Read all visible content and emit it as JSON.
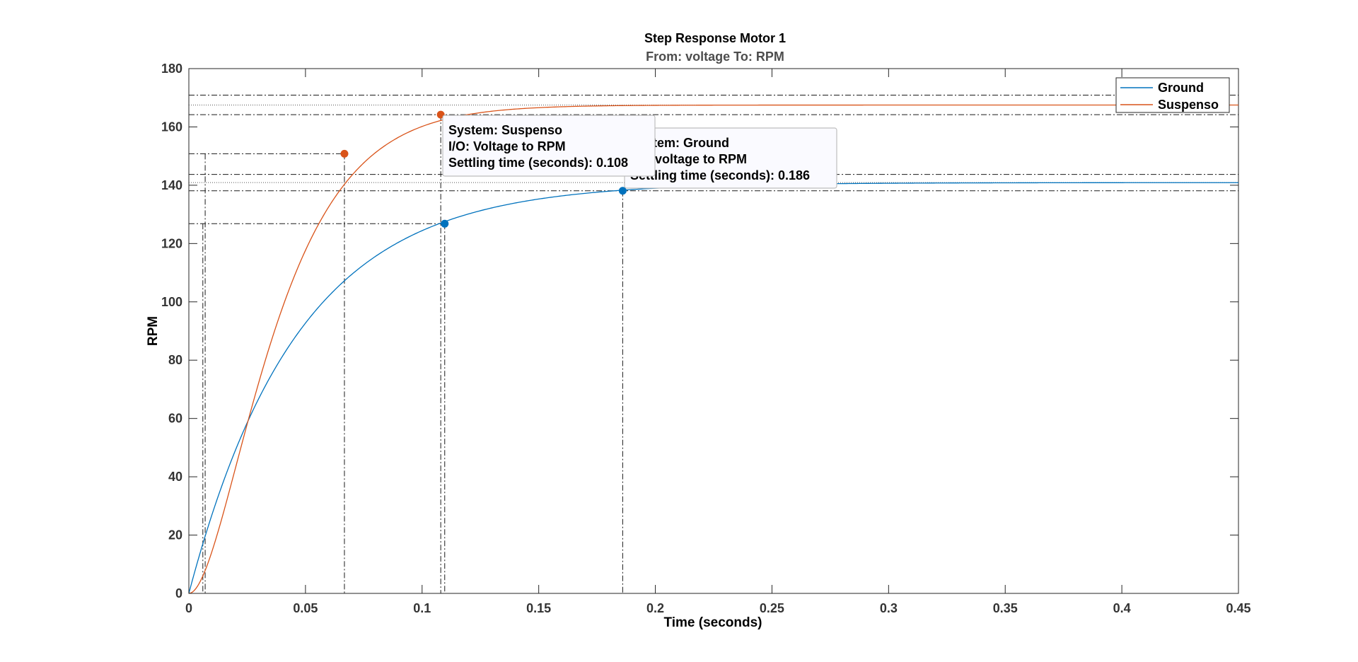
{
  "chart_data": {
    "type": "line",
    "title": "Step Response Motor 1",
    "subtitle": "From: voltage  To: RPM",
    "xlabel": "Time (seconds)",
    "ylabel": "RPM",
    "xlim": [
      0,
      0.45
    ],
    "ylim": [
      0,
      180
    ],
    "xticks": [
      0,
      0.05,
      0.1,
      0.15,
      0.2,
      0.25,
      0.3,
      0.35,
      0.4,
      0.45
    ],
    "xtick_labels": [
      "0",
      "0.05",
      "0.1",
      "0.15",
      "0.2",
      "0.25",
      "0.3",
      "0.35",
      "0.4",
      "0.45"
    ],
    "yticks": [
      0,
      20,
      40,
      60,
      80,
      100,
      120,
      140,
      160,
      180
    ],
    "ytick_labels": [
      "0",
      "20",
      "40",
      "60",
      "80",
      "100",
      "120",
      "140",
      "160",
      "180"
    ],
    "grid": false,
    "legend_position": "top-right",
    "series": [
      {
        "name": "Ground",
        "color": "#0072BD",
        "final_value": 140.9,
        "model": "first_order",
        "tau": 0.0466,
        "markers": [
          {
            "x": 0.1097,
            "y": 126.8,
            "kind": "rise"
          },
          {
            "x": 0.186,
            "y": 138.1,
            "kind": "settling"
          }
        ],
        "settling_band": [
          138.1,
          143.7
        ],
        "rise_start_x": 0.006,
        "x": [
          0,
          0.01,
          0.02,
          0.03,
          0.04,
          0.05,
          0.06,
          0.07,
          0.08,
          0.09,
          0.1,
          0.11,
          0.12,
          0.14,
          0.16,
          0.186,
          0.2,
          0.25,
          0.3,
          0.35,
          0.4,
          0.45
        ],
        "y": [
          0,
          27.3,
          49.4,
          67.2,
          81.5,
          93.1,
          102.4,
          110.0,
          116.1,
          121.0,
          125.0,
          128.2,
          130.8,
          134.6,
          136.9,
          138.1,
          139.2,
          140.5,
          140.8,
          140.9,
          140.9,
          140.9
        ]
      },
      {
        "name": "Suspenso",
        "color": "#D95319",
        "final_value": 167.5,
        "model": "second_order",
        "tau": 0.0204,
        "markers": [
          {
            "x": 0.0667,
            "y": 150.8,
            "kind": "rise"
          },
          {
            "x": 0.108,
            "y": 164.2,
            "kind": "settling"
          }
        ],
        "settling_band": [
          164.2,
          170.9
        ],
        "rise_start_x": 0.007,
        "x": [
          0,
          0.01,
          0.02,
          0.03,
          0.04,
          0.05,
          0.0667,
          0.08,
          0.09,
          0.108,
          0.12,
          0.15,
          0.2,
          0.25,
          0.3,
          0.35,
          0.4,
          0.45
        ],
        "y": [
          0,
          14.5,
          44.9,
          78.4,
          104.6,
          125.2,
          150.8,
          159.0,
          162.5,
          164.2,
          166.0,
          167.2,
          167.5,
          167.5,
          167.5,
          167.5,
          167.5,
          167.5
        ]
      }
    ],
    "annotations": [
      {
        "series": "Suspenso",
        "lines": [
          "System: Suspenso",
          "I/O: Voltage to RPM",
          "Settling time (seconds): 0.108"
        ]
      },
      {
        "series": "Ground",
        "lines": [
          "System: Ground",
          "I/O: voltage to RPM",
          "Settling time (seconds): 0.186"
        ]
      }
    ]
  }
}
